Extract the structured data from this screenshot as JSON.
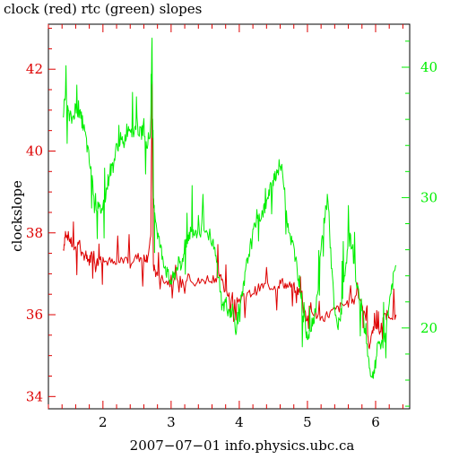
{
  "chart_data": {
    "type": "line",
    "title": "clock (red) rtc (green) slopes",
    "xlabel": "2007−07−01 info.physics.ubc.ca",
    "ylabel": "clockslope",
    "y2label": "",
    "grid": false,
    "legend": "none",
    "xlim": [
      1.2,
      6.5
    ],
    "ylim": [
      33.7,
      43.1
    ],
    "y2lim": [
      13.8,
      43.3
    ],
    "x_ticks": [
      2,
      3,
      4,
      5,
      6
    ],
    "y_ticks": [
      34,
      36,
      38,
      40,
      42
    ],
    "y2_ticks": [
      20,
      30,
      40
    ],
    "colors": {
      "red": "#dd0000",
      "green": "#00ee00",
      "axis": "#000000"
    },
    "series": [
      {
        "axis": "left",
        "color": "#dd0000",
        "x": [
          1.42,
          1.45,
          1.5,
          1.55,
          1.6,
          1.65,
          1.7,
          1.75,
          1.8,
          1.85,
          1.9,
          1.95,
          2.0,
          2.1,
          2.2,
          2.3,
          2.4,
          2.5,
          2.6,
          2.65,
          2.7,
          2.72,
          2.74,
          2.78,
          2.85,
          2.95,
          3.05,
          3.15,
          3.25,
          3.35,
          3.45,
          3.55,
          3.65,
          3.72,
          3.78,
          3.85,
          3.95,
          4.05,
          4.15,
          4.25,
          4.35,
          4.45,
          4.55,
          4.62,
          4.7,
          4.78,
          4.85,
          4.92,
          4.98,
          5.05,
          5.12,
          5.2,
          5.3,
          5.4,
          5.5,
          5.6,
          5.7,
          5.8,
          5.85,
          5.9,
          5.95,
          6.0,
          6.05,
          6.1,
          6.15,
          6.2,
          6.3
        ],
        "y": [
          37.6,
          38.0,
          37.9,
          37.7,
          37.6,
          37.8,
          37.4,
          37.5,
          37.3,
          37.6,
          37.2,
          37.4,
          37.3,
          37.3,
          37.2,
          37.4,
          37.3,
          37.4,
          37.4,
          37.4,
          37.8,
          41.6,
          37.2,
          37.0,
          36.9,
          36.8,
          36.8,
          36.7,
          37.0,
          36.8,
          36.8,
          36.9,
          36.9,
          37.0,
          36.6,
          36.5,
          36.4,
          36.4,
          36.5,
          36.6,
          36.7,
          36.7,
          36.7,
          36.8,
          36.7,
          36.7,
          36.6,
          36.5,
          35.9,
          36.2,
          36.0,
          35.9,
          36.0,
          36.1,
          36.2,
          36.3,
          36.5,
          36.3,
          36.0,
          35.2,
          35.6,
          35.8,
          35.5,
          35.8,
          36.0,
          36.0,
          36.0
        ]
      },
      {
        "axis": "right",
        "color": "#00ee00",
        "x": [
          1.42,
          1.45,
          1.5,
          1.55,
          1.6,
          1.65,
          1.7,
          1.75,
          1.8,
          1.85,
          1.9,
          1.95,
          2.0,
          2.05,
          2.1,
          2.15,
          2.2,
          2.25,
          2.3,
          2.35,
          2.4,
          2.45,
          2.5,
          2.55,
          2.6,
          2.65,
          2.7,
          2.72,
          2.74,
          2.76,
          2.8,
          2.85,
          2.9,
          2.95,
          3.0,
          3.05,
          3.1,
          3.15,
          3.2,
          3.25,
          3.3,
          3.35,
          3.4,
          3.5,
          3.6,
          3.65,
          3.7,
          3.75,
          3.8,
          3.85,
          3.9,
          3.95,
          4.0,
          4.05,
          4.1,
          4.15,
          4.2,
          4.25,
          4.3,
          4.35,
          4.4,
          4.45,
          4.5,
          4.55,
          4.6,
          4.65,
          4.7,
          4.75,
          4.8,
          4.85,
          4.9,
          4.95,
          5.0,
          5.05,
          5.1,
          5.15,
          5.2,
          5.25,
          5.3,
          5.35,
          5.4,
          5.45,
          5.5,
          5.55,
          5.6,
          5.65,
          5.7,
          5.75,
          5.8,
          5.85,
          5.9,
          5.95,
          6.0,
          6.05,
          6.1,
          6.15,
          6.2,
          6.25,
          6.3
        ],
        "y": [
          36.5,
          37.8,
          36.2,
          36.0,
          37.0,
          36.4,
          35.8,
          34.5,
          32.8,
          31.0,
          29.5,
          29.0,
          29.3,
          30.5,
          32.0,
          32.5,
          33.8,
          34.5,
          34.0,
          35.2,
          35.5,
          35.0,
          35.6,
          34.8,
          35.5,
          34.2,
          35.0,
          42.0,
          30.2,
          29.0,
          27.3,
          26.0,
          25.0,
          24.0,
          23.5,
          24.0,
          25.0,
          24.5,
          26.5,
          27.0,
          27.5,
          27.5,
          27.5,
          27.5,
          26.8,
          25.5,
          24.0,
          21.5,
          22.0,
          21.2,
          21.5,
          20.0,
          21.5,
          22.5,
          24.5,
          26.0,
          27.0,
          28.5,
          28.5,
          29.0,
          29.5,
          30.5,
          31.5,
          32.0,
          32.5,
          31.5,
          28.5,
          27.0,
          26.0,
          24.5,
          23.0,
          20.5,
          19.5,
          20.0,
          21.0,
          22.5,
          26.0,
          28.5,
          30.0,
          25.0,
          21.0,
          20.0,
          21.5,
          24.0,
          27.0,
          26.5,
          24.5,
          22.5,
          21.5,
          19.5,
          17.5,
          16.0,
          17.5,
          19.0,
          18.5,
          19.8,
          22.0,
          23.5,
          24.8
        ]
      }
    ]
  }
}
